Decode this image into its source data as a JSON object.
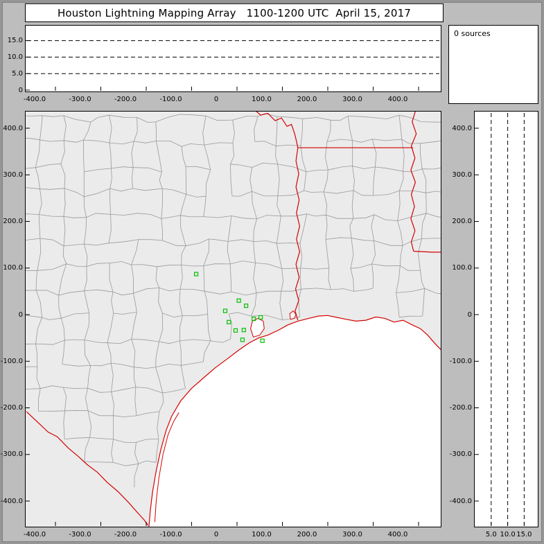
{
  "title": "Houston Lightning Mapping Array   1100-1200 UTC  April 15, 2017",
  "sources_panel": {
    "label": "0 sources"
  },
  "colors": {
    "frame_bg": "#bdbdbd",
    "panel_bg": "#ffffff",
    "land": "#ebebeb",
    "sea": "#ffffff",
    "county_line": "#999999",
    "state_line": "#d40000",
    "station": "#00c000",
    "axis_line": "#000000"
  },
  "chart_data": {
    "type": "scatter",
    "sources_count": 0,
    "top_panel": {
      "type": "scatter",
      "points": [],
      "x_tick_values": [
        -400,
        -300,
        -200,
        -100,
        0,
        100,
        200,
        300,
        400
      ],
      "x_tick_labels": [
        "-400.0",
        "-300.0",
        "-200.0",
        "-100.0",
        "0",
        "100.0",
        "200.0",
        "300.0",
        "400.0"
      ],
      "y_tick_values": [
        0,
        5,
        10,
        15
      ],
      "y_tick_labels": [
        "0",
        "5.0",
        "10.0",
        "15.0"
      ],
      "dashed_gridlines_y": [
        5,
        10,
        15
      ],
      "x_range_km": [
        -464,
        449
      ],
      "y_range_km": [
        0,
        19.5
      ]
    },
    "map_panel": {
      "type": "scatter-map",
      "x_tick_values": [
        -400,
        -300,
        -200,
        -100,
        0,
        100,
        200,
        300,
        400
      ],
      "x_tick_labels": [
        "-400.0",
        "-300.0",
        "-200.0",
        "-100.0",
        "0",
        "100.0",
        "200.0",
        "300.0",
        "400.0"
      ],
      "y_tick_values": [
        400,
        300,
        200,
        100,
        0,
        -100,
        -200,
        -300,
        -400
      ],
      "y_tick_labels": [
        "400.0",
        "300.0",
        "200.0",
        "100.0",
        "0",
        "-100.0",
        "-200.0",
        "-300.0",
        "-400.0"
      ],
      "x_range_km": [
        -464,
        449
      ],
      "y_range_km": [
        -450,
        436
      ],
      "station_marker": "green open square",
      "stations_km": [
        [
          -90,
          87
        ],
        [
          -26,
          8
        ],
        [
          4,
          30
        ],
        [
          20,
          19
        ],
        [
          -18,
          -16
        ],
        [
          -3,
          -34
        ],
        [
          15,
          -33
        ],
        [
          37,
          -9
        ],
        [
          52,
          -6
        ],
        [
          12,
          -54
        ],
        [
          56,
          -56
        ]
      ],
      "lightning_points": [],
      "map_features": [
        "county boundaries (gray)",
        "state borders (red)",
        "Gulf of Mexico coastline (red)"
      ]
    },
    "right_panel": {
      "type": "scatter",
      "points": [],
      "x_tick_values": [
        5,
        10,
        15
      ],
      "x_tick_labels": [
        "5.0",
        "10.0",
        "15.0"
      ],
      "y_tick_values": [
        400,
        300,
        200,
        100,
        0,
        -100,
        -200,
        -300,
        -400
      ],
      "y_tick_labels": [
        "400.0",
        "300.0",
        "200.0",
        "100.0",
        "0",
        "-100.0",
        "-200.0",
        "-300.0",
        "-400.0"
      ],
      "dashed_gridlines_x": [
        5,
        10,
        15
      ],
      "y_range_km": [
        -450,
        436
      ],
      "x_range_km": [
        0,
        19.5
      ]
    }
  }
}
